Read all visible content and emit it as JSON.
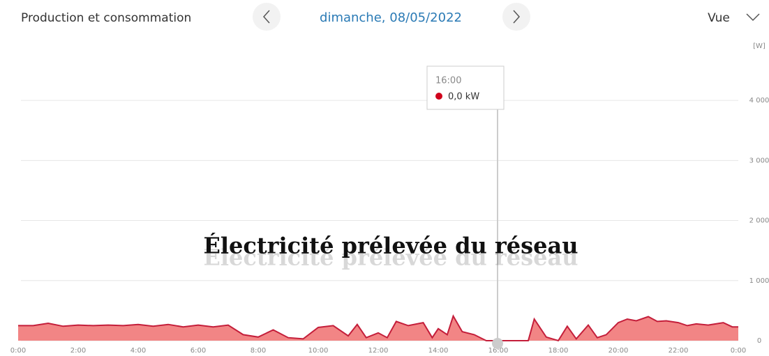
{
  "header": {
    "title": "Production et consommation",
    "date": "dimanche, 08/05/2022",
    "view": "Vue"
  },
  "chart_data": {
    "type": "area",
    "unit": "[W]",
    "overlay_title": "Électricité prélevée du réseau",
    "tooltip": {
      "time": "16:00",
      "value_label": "0,0 kW"
    },
    "x": [
      0,
      0.5,
      1,
      1.5,
      2,
      2.5,
      3,
      3.5,
      4,
      4.5,
      5,
      5.5,
      6,
      6.5,
      7,
      7.5,
      8,
      8.5,
      9,
      9.5,
      10,
      10.5,
      11,
      11.3,
      11.6,
      12,
      12.3,
      12.6,
      13,
      13.5,
      13.8,
      14,
      14.3,
      14.5,
      14.8,
      15.2,
      15.6,
      16,
      16.5,
      17,
      17.2,
      17.6,
      18,
      18.3,
      18.6,
      19,
      19.3,
      19.6,
      20,
      20.3,
      20.6,
      21,
      21.3,
      21.6,
      22,
      22.3,
      22.6,
      23,
      23.5,
      23.8,
      24
    ],
    "values": [
      250,
      250,
      290,
      240,
      260,
      250,
      260,
      250,
      270,
      240,
      270,
      230,
      260,
      230,
      260,
      100,
      60,
      180,
      50,
      30,
      220,
      250,
      80,
      270,
      50,
      130,
      50,
      320,
      250,
      300,
      50,
      200,
      100,
      410,
      150,
      100,
      0,
      0,
      0,
      0,
      360,
      60,
      0,
      240,
      30,
      260,
      50,
      100,
      300,
      360,
      330,
      400,
      320,
      330,
      300,
      250,
      280,
      260,
      300,
      230,
      230
    ],
    "fill": "#f28585",
    "color": "#c41e3a",
    "xlim": [
      0,
      24
    ],
    "xticks": [
      {
        "value": 0,
        "label": "0:00"
      },
      {
        "value": 2,
        "label": "2:00"
      },
      {
        "value": 4,
        "label": "4:00"
      },
      {
        "value": 6,
        "label": "6:00"
      },
      {
        "value": 8,
        "label": "8:00"
      },
      {
        "value": 10,
        "label": "10:00"
      },
      {
        "value": 12,
        "label": "12:00"
      },
      {
        "value": 14,
        "label": "14:00"
      },
      {
        "value": 16,
        "label": "16:00"
      },
      {
        "value": 18,
        "label": "18:00"
      },
      {
        "value": 20,
        "label": "20:00"
      },
      {
        "value": 22,
        "label": "22:00"
      },
      {
        "value": 24,
        "label": "0:00"
      }
    ],
    "ylim": [
      0,
      4500
    ],
    "yticks": [
      0,
      {
        "value": 1000,
        "label": "1 000"
      },
      {
        "value": 2000,
        "label": "2 000"
      },
      {
        "value": 3000,
        "label": "3 000"
      },
      {
        "value": 4000,
        "label": "4 000"
      }
    ],
    "grid": true
  }
}
